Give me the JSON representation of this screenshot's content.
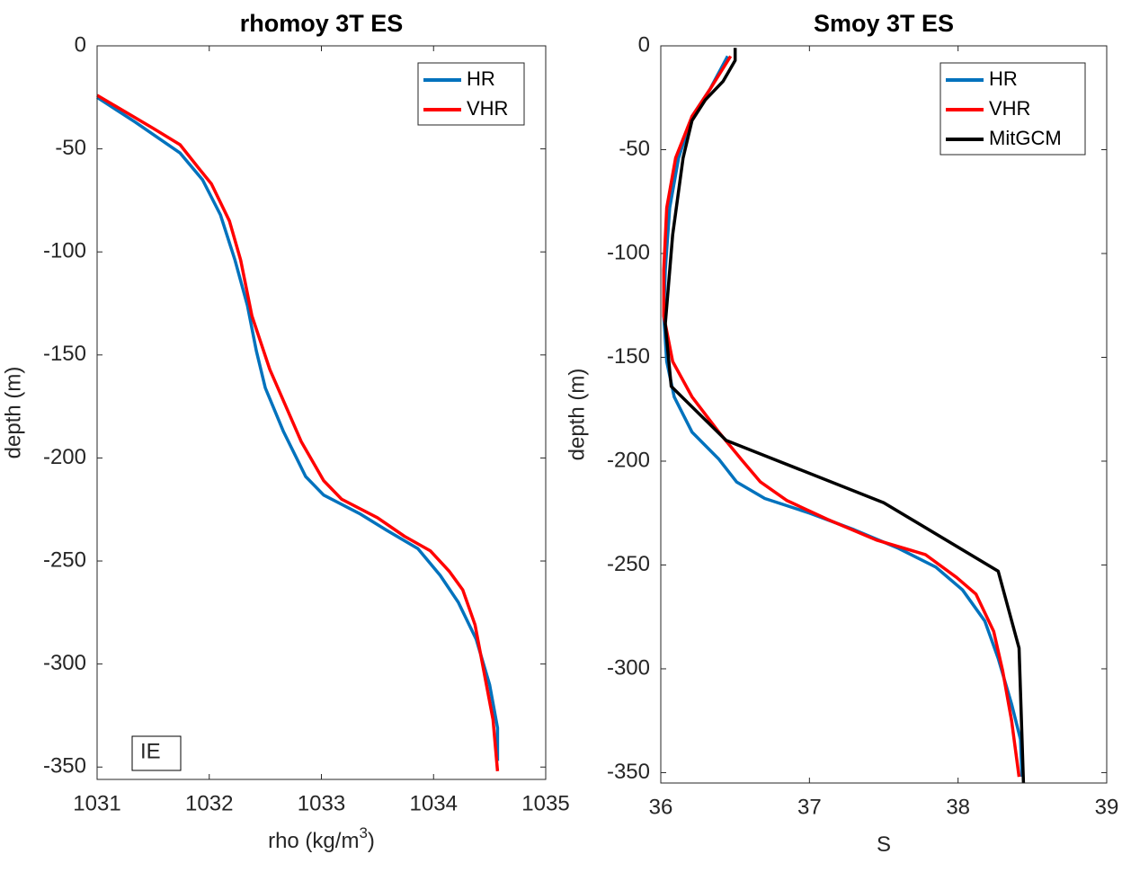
{
  "chart_data": [
    {
      "type": "line",
      "title": "rhomoy 3T ES",
      "xlabel": [
        "rho (kg/m",
        "3",
        ")"
      ],
      "ylabel": "depth (m)",
      "xlim": [
        1031,
        1035
      ],
      "xticks": [
        1031,
        1032,
        1033,
        1034,
        1035
      ],
      "ylim": [
        -356,
        0
      ],
      "yticks": [
        0,
        -50,
        -100,
        -150,
        -200,
        -250,
        -300,
        -350
      ],
      "grid": false,
      "legend": "upper right",
      "annotation": "IE",
      "series": [
        {
          "name": "HR",
          "color": "#0072bd",
          "x": [
            1031,
            1031.34,
            1031.74,
            1031.94,
            1032.1,
            1032.23,
            1032.34,
            1032.42,
            1032.5,
            1032.66,
            1032.86,
            1033.02,
            1033.34,
            1033.58,
            1033.86,
            1034.06,
            1034.22,
            1034.38,
            1034.5,
            1034.57,
            1034.57
          ],
          "values": [
            -25,
            -37,
            -52,
            -65,
            -82,
            -104,
            -126,
            -148,
            -166,
            -187,
            -209,
            -218,
            -227,
            -235,
            -244,
            -257,
            -270,
            -288,
            -310,
            -331,
            -347
          ]
        },
        {
          "name": "VHR",
          "color": "#ff0000",
          "x": [
            1031,
            1031.5,
            1031.74,
            1031.9,
            1032.02,
            1032.18,
            1032.28,
            1032.38,
            1032.54,
            1032.82,
            1033.02,
            1033.18,
            1033.5,
            1033.74,
            1033.97,
            1034.14,
            1034.26,
            1034.37,
            1034.44,
            1034.53,
            1034.57
          ],
          "values": [
            -24,
            -40,
            -48,
            -59,
            -67,
            -85,
            -104,
            -131,
            -157,
            -192,
            -211,
            -220,
            -229,
            -238,
            -245,
            -255,
            -264,
            -281,
            -301,
            -327,
            -352
          ]
        }
      ]
    },
    {
      "type": "line",
      "title": "Smoy 3T ES",
      "xlabel": [
        "S"
      ],
      "ylabel": "depth (m)",
      "xlim": [
        36,
        39
      ],
      "xticks": [
        36,
        37,
        38,
        39
      ],
      "ylim": [
        -355,
        0
      ],
      "yticks": [
        0,
        -50,
        -100,
        -150,
        -200,
        -250,
        -300,
        -350
      ],
      "grid": false,
      "legend": "upper right",
      "series": [
        {
          "name": "HR",
          "color": "#0072bd",
          "x": [
            36.45,
            36.33,
            36.21,
            36.12,
            36.06,
            36.03,
            36.02,
            36.04,
            36.09,
            36.21,
            36.39,
            36.51,
            36.7,
            37.0,
            37.3,
            37.6,
            37.85,
            38.03,
            38.18,
            38.27,
            38.36,
            38.42,
            38.43
          ],
          "values": [
            -5,
            -21,
            -34,
            -54,
            -78,
            -108,
            -130,
            -152,
            -169,
            -186,
            -199,
            -210,
            -218,
            -225,
            -233,
            -242,
            -251,
            -262,
            -277,
            -295,
            -317,
            -334,
            -352
          ]
        },
        {
          "name": "VHR",
          "color": "#ff0000",
          "x": [
            36.47,
            36.33,
            36.21,
            36.1,
            36.04,
            36.02,
            36.02,
            36.08,
            36.21,
            36.39,
            36.54,
            36.67,
            36.85,
            37.12,
            37.45,
            37.78,
            37.99,
            38.12,
            38.24,
            38.3,
            38.36,
            38.41
          ],
          "values": [
            -5,
            -21,
            -34,
            -54,
            -78,
            -108,
            -130,
            -152,
            -169,
            -186,
            -199,
            -210,
            -219,
            -228,
            -238,
            -245,
            -256,
            -264,
            -282,
            -301,
            -325,
            -352
          ]
        },
        {
          "name": "MitGCM",
          "color": "#000000",
          "x": [
            36.5,
            36.5,
            36.42,
            36.3,
            36.21,
            36.15,
            36.08,
            36.03,
            36.07,
            36.44,
            37.5,
            38.27,
            38.41,
            38.44
          ],
          "values": [
            -1,
            -7,
            -17,
            -26,
            -36,
            -54,
            -91,
            -134,
            -164,
            -190,
            -220,
            -253,
            -290,
            -355
          ]
        }
      ]
    }
  ]
}
